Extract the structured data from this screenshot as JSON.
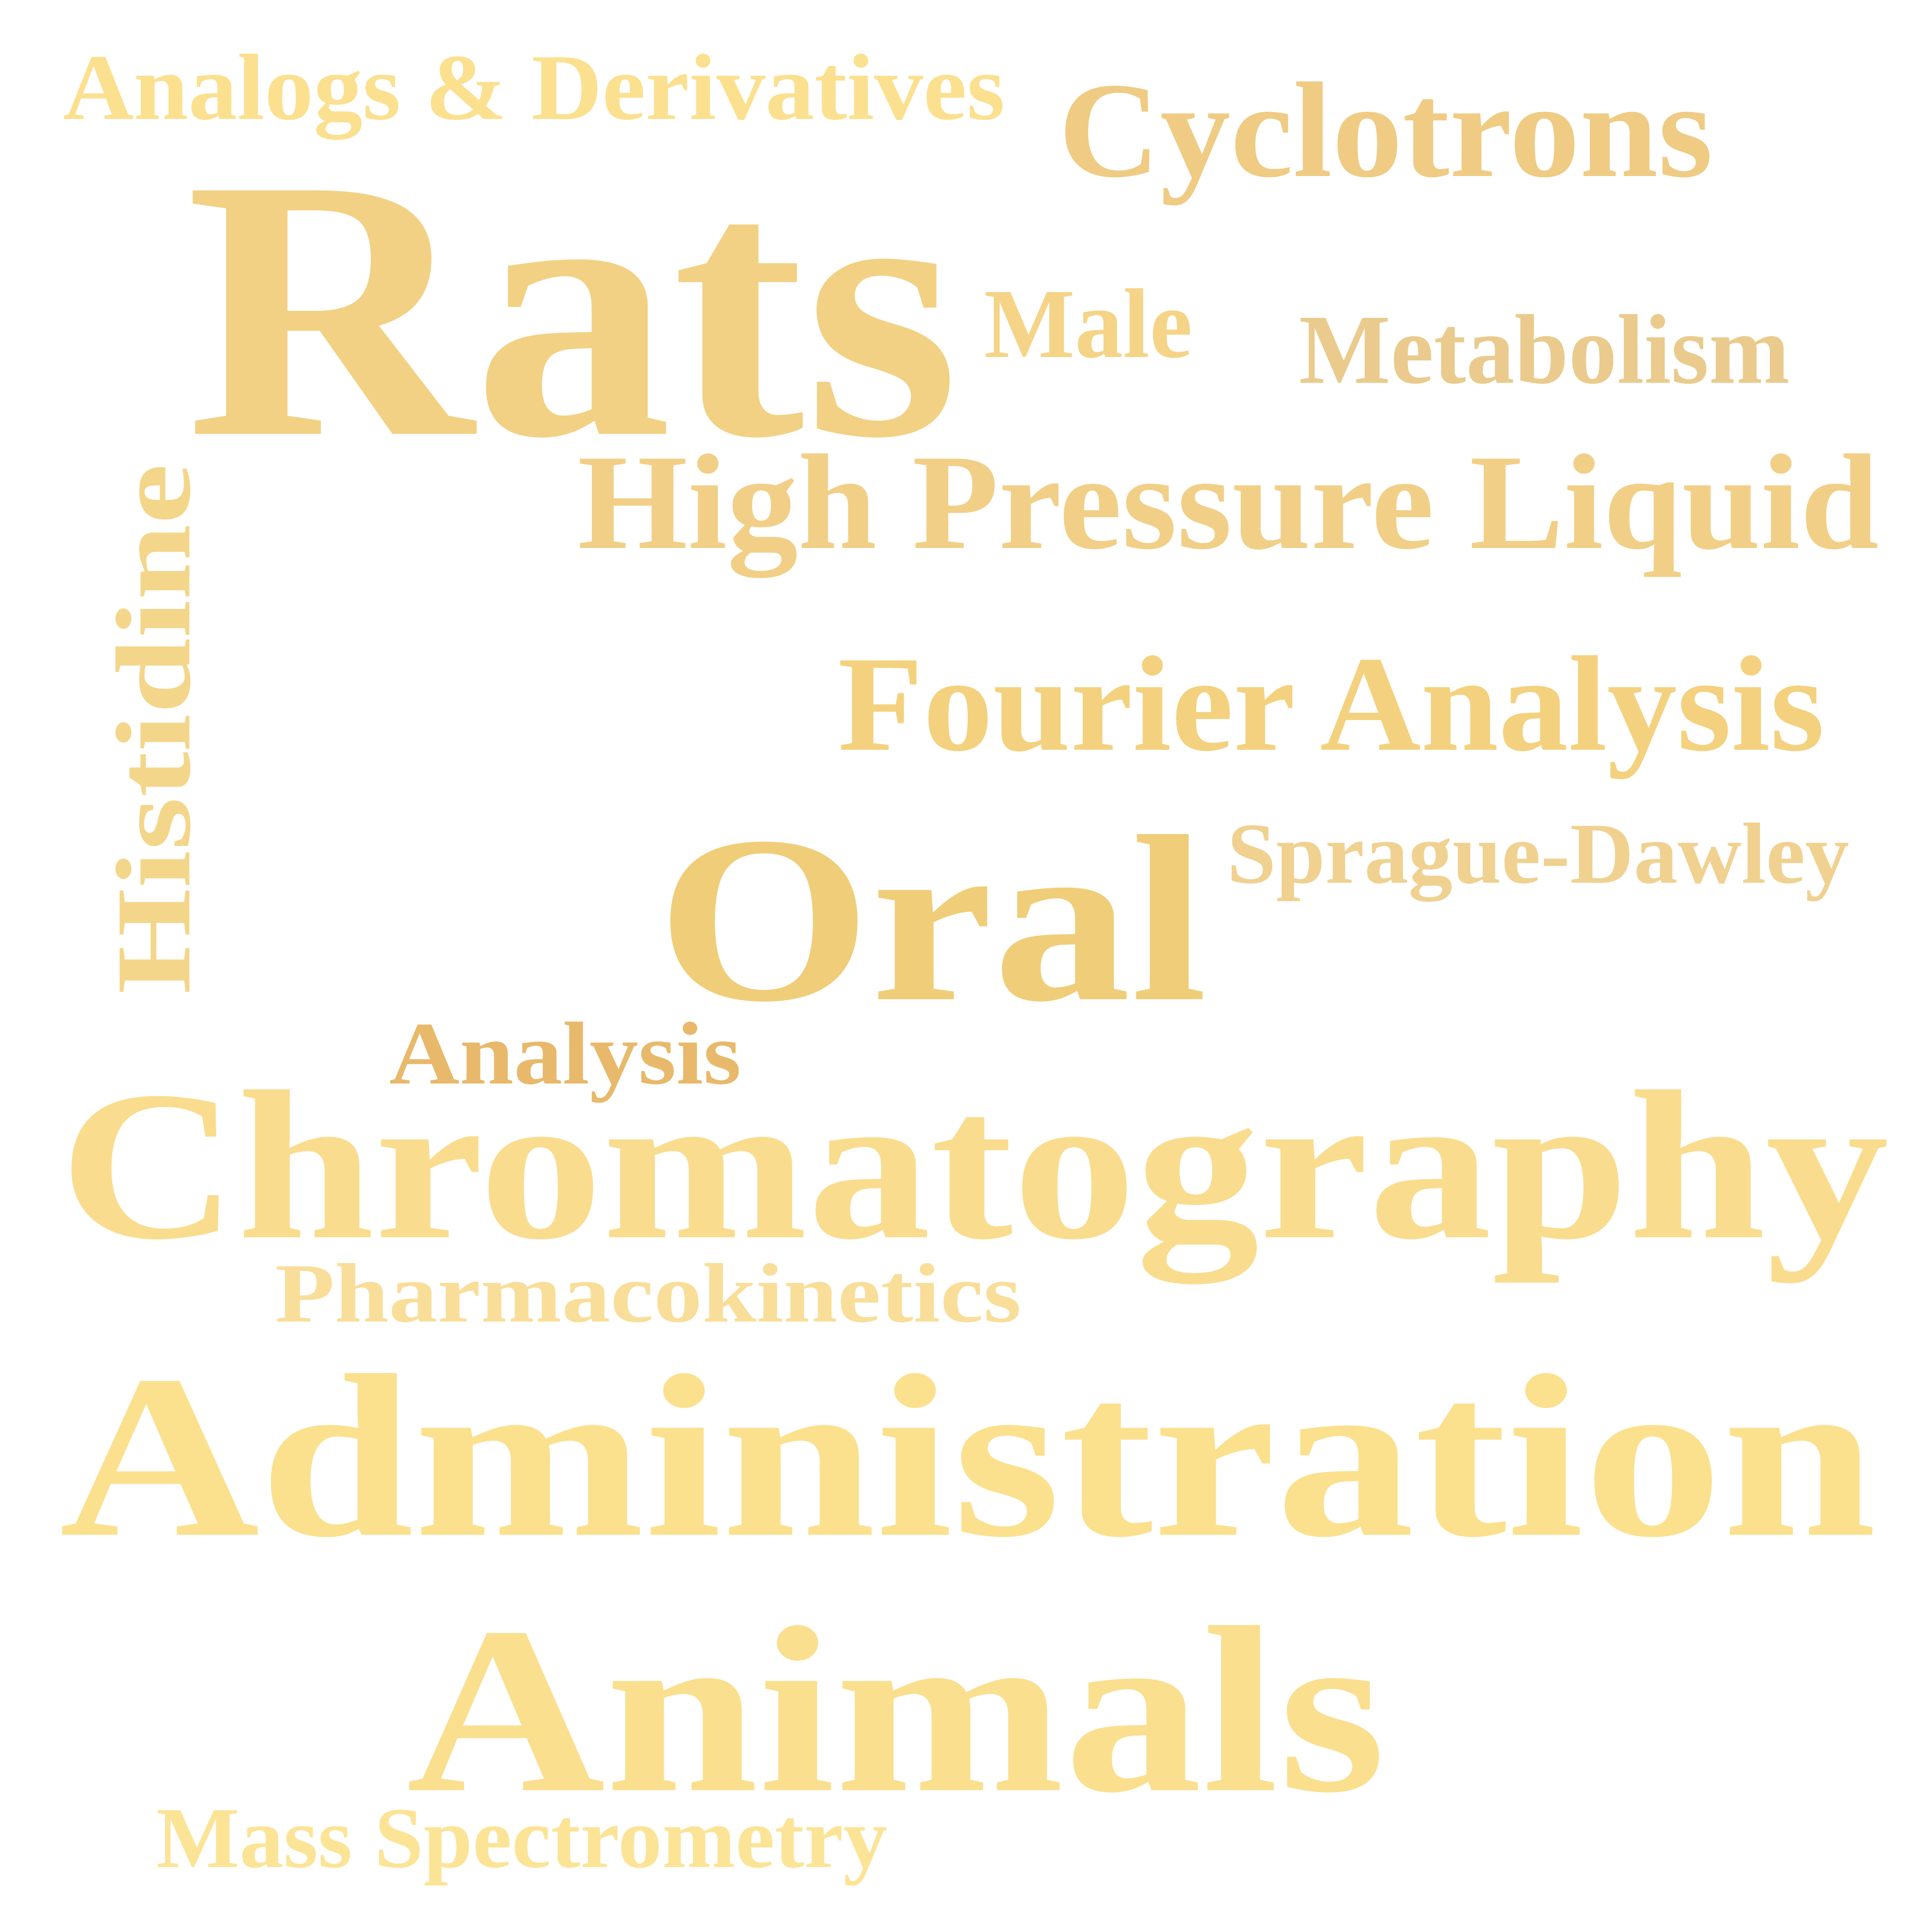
{
  "word_cloud": {
    "words": [
      {
        "key": "analogs",
        "text": "Analogs & Derivatives",
        "color": "#FBE08F"
      },
      {
        "key": "cyclotrons",
        "text": "Cyclotrons",
        "color": "#EFCB84"
      },
      {
        "key": "rats",
        "text": "Rats",
        "color": "#F2D184"
      },
      {
        "key": "male",
        "text": "Male",
        "color": "#F5D488"
      },
      {
        "key": "metabolism",
        "text": "Metabolism",
        "color": "#EACB8D"
      },
      {
        "key": "histidine",
        "text": "Histidine",
        "color": "#F4D68A"
      },
      {
        "key": "high-pressure-liquid",
        "text": "High Pressure Liquid",
        "color": "#F2CF87"
      },
      {
        "key": "fourier-analysis",
        "text": "Fourier Analysis",
        "color": "#F4D17E"
      },
      {
        "key": "oral",
        "text": "Oral",
        "color": "#F0CD79"
      },
      {
        "key": "sprague-dawley",
        "text": "Sprague-Dawley",
        "color": "#F0D190"
      },
      {
        "key": "analysis",
        "text": "Analysis",
        "color": "#E8B96B"
      },
      {
        "key": "chromatography",
        "text": "Chromatography",
        "color": "#F9DC8D"
      },
      {
        "key": "pharmacokinetics",
        "text": "Pharmacokinetics",
        "color": "#F9DE99"
      },
      {
        "key": "administration",
        "text": "Administration",
        "color": "#FBE08E"
      },
      {
        "key": "animals",
        "text": "Animals",
        "color": "#FADF8F"
      },
      {
        "key": "mass-spectrometry",
        "text": "Mass Spectrometry",
        "color": "#FCE497"
      }
    ]
  }
}
